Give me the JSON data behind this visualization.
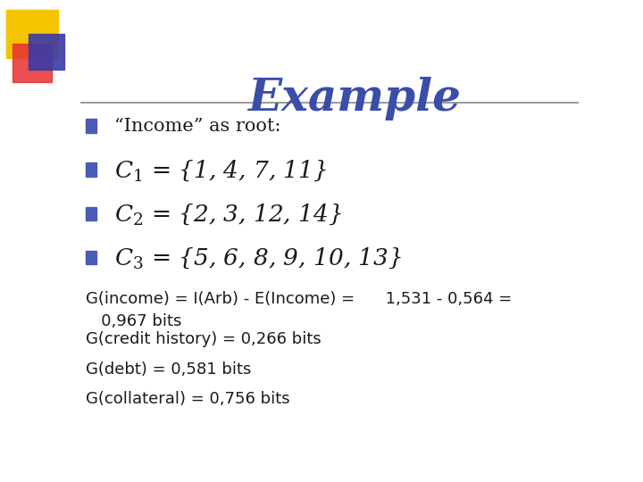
{
  "title": "Example",
  "title_color": "#3A4EA8",
  "title_fontsize": 36,
  "bg_color": "#FFFFFF",
  "bullet_color": "#4A5BB8",
  "bullet_items": [
    "“Income” as root:",
    "$C_1$ = {1, 4, 7, 11}",
    "$C_2$ = {2, 3, 12, 14}",
    "$C_3$ = {5, 6, 8, 9, 10, 13}"
  ],
  "plain_items": [
    "G(income) = I(Arb) - E(Income) =      1,531 - 0,564 =\n   0,967 bits",
    "G(credit history) = 0,266 bits",
    "G(debt) = 0,581 bits",
    "G(collateral) = 0,756 bits"
  ],
  "text_color": "#1A1A1A",
  "square_colors": [
    "#F5C400",
    "#E83030",
    "#3A3AA8"
  ],
  "header_line_color": "#888888"
}
